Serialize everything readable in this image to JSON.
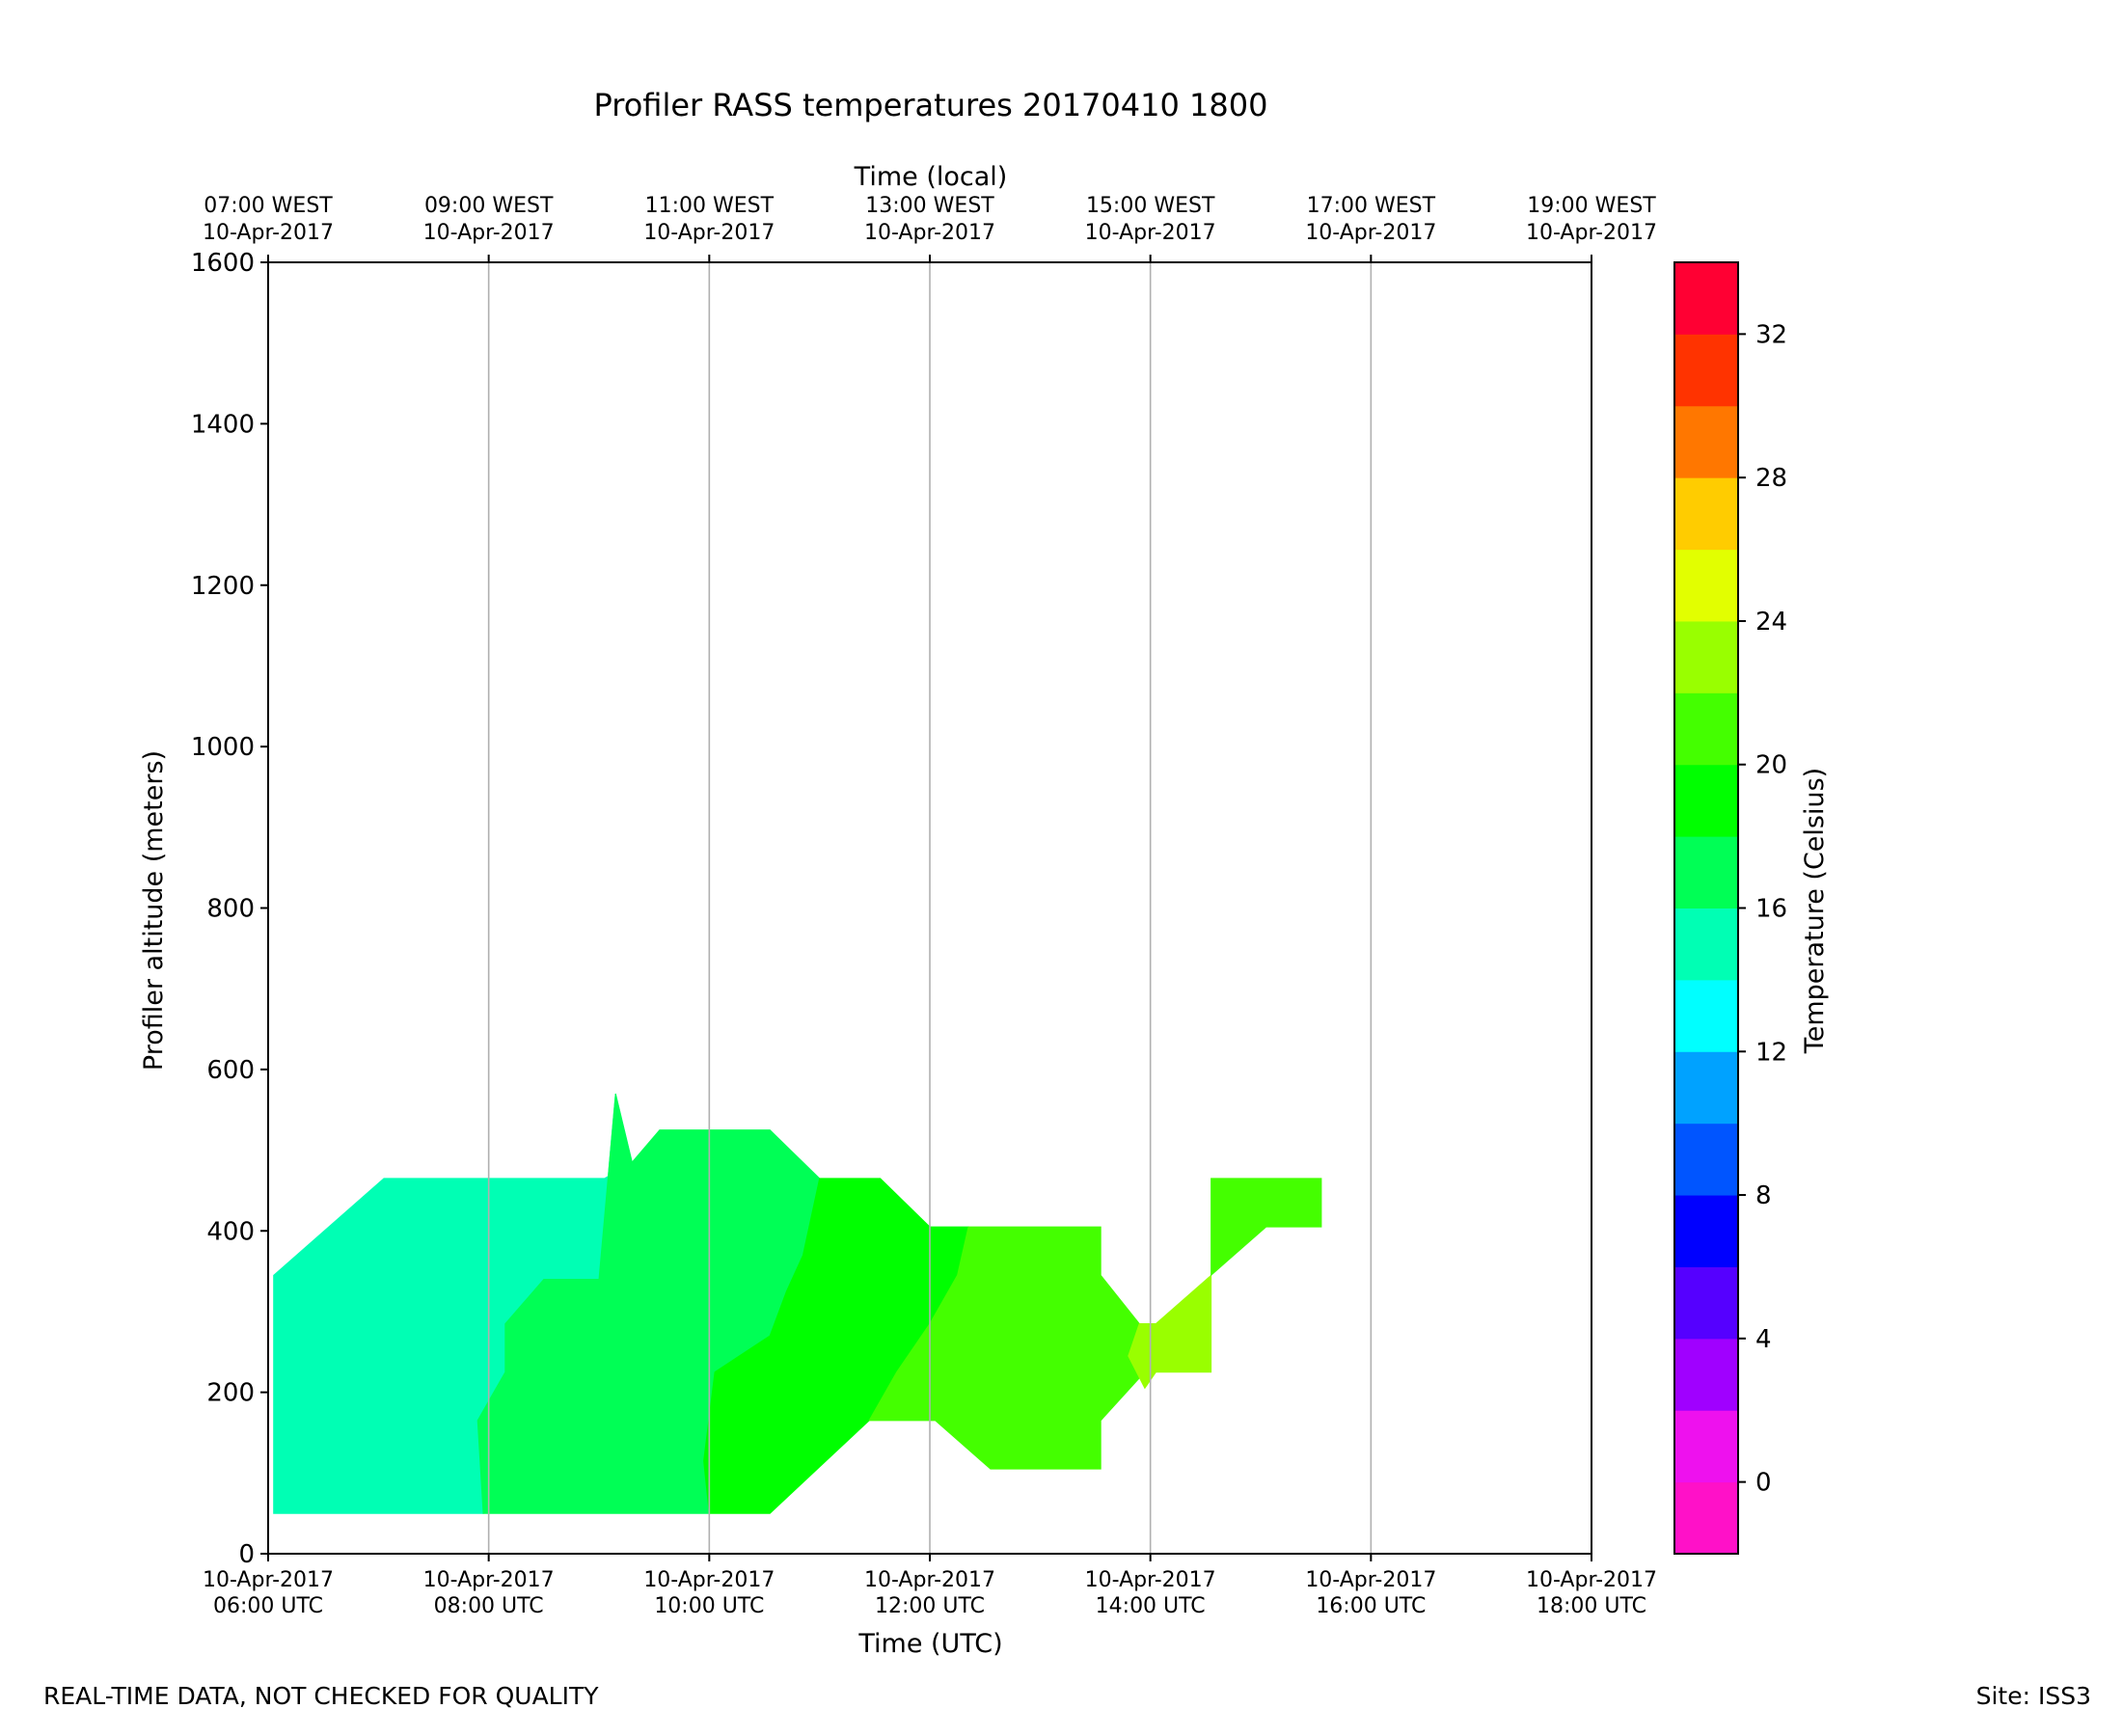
{
  "chart_data": {
    "type": "heatmap",
    "title": "Profiler RASS temperatures 20170410 1800",
    "xlabel": "Time (UTC)",
    "xlabel_top": "Time (local)",
    "ylabel": "Profiler altitude (meters)",
    "colorbar_label": "Temperature (Celsius)",
    "xlim_hours_utc": [
      6,
      18
    ],
    "ylim": [
      0,
      1600
    ],
    "y_ticks": [
      0,
      200,
      400,
      600,
      800,
      1000,
      1200,
      1400,
      1600
    ],
    "x_ticks_bottom": [
      {
        "hour": 6,
        "date": "10-Apr-2017",
        "time": "06:00 UTC"
      },
      {
        "hour": 8,
        "date": "10-Apr-2017",
        "time": "08:00 UTC"
      },
      {
        "hour": 10,
        "date": "10-Apr-2017",
        "time": "10:00 UTC"
      },
      {
        "hour": 12,
        "date": "10-Apr-2017",
        "time": "12:00 UTC"
      },
      {
        "hour": 14,
        "date": "10-Apr-2017",
        "time": "14:00 UTC"
      },
      {
        "hour": 16,
        "date": "10-Apr-2017",
        "time": "16:00 UTC"
      },
      {
        "hour": 18,
        "date": "10-Apr-2017",
        "time": "18:00 UTC"
      }
    ],
    "x_ticks_top": [
      {
        "hour": 6,
        "time": "07:00 WEST",
        "date": "10-Apr-2017"
      },
      {
        "hour": 8,
        "time": "09:00 WEST",
        "date": "10-Apr-2017"
      },
      {
        "hour": 10,
        "time": "11:00 WEST",
        "date": "10-Apr-2017"
      },
      {
        "hour": 12,
        "time": "13:00 WEST",
        "date": "10-Apr-2017"
      },
      {
        "hour": 14,
        "time": "15:00 WEST",
        "date": "10-Apr-2017"
      },
      {
        "hour": 16,
        "time": "17:00 WEST",
        "date": "10-Apr-2017"
      },
      {
        "hour": 18,
        "time": "19:00 WEST",
        "date": "10-Apr-2017"
      }
    ],
    "vertical_gridlines_hours": [
      8,
      10,
      12,
      14,
      16
    ],
    "colorbar": {
      "range": [
        -2,
        34
      ],
      "levels": [
        {
          "min": -2,
          "max": 0,
          "color": "#ff11c8"
        },
        {
          "min": 0,
          "max": 2,
          "color": "#ee11ee"
        },
        {
          "min": 2,
          "max": 4,
          "color": "#a000ff"
        },
        {
          "min": 4,
          "max": 6,
          "color": "#5500ff"
        },
        {
          "min": 6,
          "max": 8,
          "color": "#0000ff"
        },
        {
          "min": 8,
          "max": 10,
          "color": "#0055ff"
        },
        {
          "min": 10,
          "max": 12,
          "color": "#00a2ff"
        },
        {
          "min": 12,
          "max": 14,
          "color": "#00ffff"
        },
        {
          "min": 14,
          "max": 16,
          "color": "#00ffb4"
        },
        {
          "min": 16,
          "max": 18,
          "color": "#00ff55"
        },
        {
          "min": 18,
          "max": 20,
          "color": "#00ff00"
        },
        {
          "min": 20,
          "max": 22,
          "color": "#44ff00"
        },
        {
          "min": 22,
          "max": 24,
          "color": "#99ff00"
        },
        {
          "min": 24,
          "max": 26,
          "color": "#e2ff00"
        },
        {
          "min": 26,
          "max": 28,
          "color": "#ffcc00"
        },
        {
          "min": 28,
          "max": 30,
          "color": "#ff7700"
        },
        {
          "min": 30,
          "max": 32,
          "color": "#ff3300"
        },
        {
          "min": 32,
          "max": 34,
          "color": "#ff0033"
        }
      ],
      "ticks": [
        0,
        4,
        8,
        12,
        16,
        20,
        24,
        28,
        32
      ]
    },
    "regions": [
      {
        "level": "14-16",
        "color": "#00ffb4",
        "points": [
          [
            6.05,
            50
          ],
          [
            6.05,
            345
          ],
          [
            7.05,
            465
          ],
          [
            9.05,
            465
          ],
          [
            9.3,
            485
          ],
          [
            9.15,
            570
          ],
          [
            9.0,
            340
          ],
          [
            8.5,
            340
          ],
          [
            8.15,
            285
          ],
          [
            8.15,
            225
          ],
          [
            7.9,
            165
          ],
          [
            7.95,
            50
          ]
        ]
      },
      {
        "level": "16-18",
        "color": "#00ff55",
        "points": [
          [
            7.95,
            50
          ],
          [
            7.9,
            165
          ],
          [
            8.15,
            225
          ],
          [
            8.15,
            285
          ],
          [
            8.5,
            340
          ],
          [
            9.0,
            340
          ],
          [
            9.15,
            570
          ],
          [
            9.3,
            485
          ],
          [
            9.55,
            525
          ],
          [
            10.55,
            525
          ],
          [
            11.0,
            465
          ],
          [
            10.85,
            370
          ],
          [
            10.7,
            325
          ],
          [
            10.55,
            270
          ],
          [
            10.05,
            225
          ],
          [
            9.95,
            115
          ],
          [
            10.0,
            50
          ]
        ]
      },
      {
        "level": "18-20",
        "color": "#00ff00",
        "points": [
          [
            10.0,
            50
          ],
          [
            9.95,
            115
          ],
          [
            10.05,
            225
          ],
          [
            10.55,
            270
          ],
          [
            10.7,
            325
          ],
          [
            10.85,
            370
          ],
          [
            11.0,
            465
          ],
          [
            11.55,
            465
          ],
          [
            12.0,
            405
          ],
          [
            12.35,
            405
          ],
          [
            12.25,
            345
          ],
          [
            12.0,
            285
          ],
          [
            11.7,
            225
          ],
          [
            11.45,
            165
          ],
          [
            10.55,
            50
          ]
        ]
      },
      {
        "level": "20-22",
        "color": "#44ff00",
        "points": [
          [
            11.45,
            165
          ],
          [
            11.7,
            225
          ],
          [
            12.0,
            285
          ],
          [
            12.25,
            345
          ],
          [
            12.35,
            405
          ],
          [
            13.55,
            405
          ],
          [
            13.55,
            345
          ],
          [
            13.9,
            285
          ],
          [
            13.8,
            245
          ],
          [
            13.95,
            225
          ],
          [
            13.55,
            165
          ],
          [
            13.55,
            105
          ],
          [
            12.55,
            105
          ],
          [
            12.05,
            165
          ]
        ]
      },
      {
        "level": "22-24",
        "color": "#99ff00",
        "points": [
          [
            13.9,
            285
          ],
          [
            14.05,
            285
          ],
          [
            14.55,
            345
          ],
          [
            14.55,
            225
          ],
          [
            14.05,
            225
          ],
          [
            13.95,
            205
          ],
          [
            13.8,
            245
          ]
        ]
      },
      {
        "level": "20-22",
        "color": "#44ff00",
        "points": [
          [
            14.55,
            345
          ],
          [
            14.55,
            465
          ],
          [
            15.55,
            465
          ],
          [
            15.55,
            405
          ],
          [
            15.05,
            405
          ]
        ]
      }
    ]
  },
  "footer": {
    "left_note": "REAL-TIME DATA, NOT CHECKED FOR QUALITY",
    "site": "Site: ISS3"
  }
}
